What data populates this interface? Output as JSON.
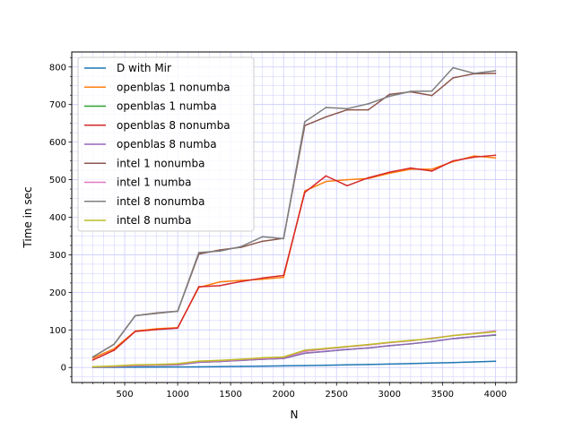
{
  "chart_data": {
    "type": "line",
    "title": "",
    "xlabel": "N",
    "ylabel": "Time in sec",
    "xlim": [
      0,
      4200
    ],
    "ylim": [
      -40,
      840
    ],
    "xticks": [
      500,
      1000,
      1500,
      2000,
      2500,
      3000,
      3500,
      4000
    ],
    "xtick_labels": [
      "500",
      "1000",
      "1500",
      "2000",
      "2500",
      "3000",
      "3500",
      "4000"
    ],
    "yticks": [
      0,
      100,
      200,
      300,
      400,
      500,
      600,
      700,
      800
    ],
    "ytick_labels": [
      "0",
      "100",
      "200",
      "300",
      "400",
      "500",
      "600",
      "700",
      "800"
    ],
    "x_minor_ticks": [
      100,
      200,
      300,
      400,
      600,
      700,
      800,
      900,
      1100,
      1200,
      1300,
      1400,
      1600,
      1700,
      1800,
      1900,
      2100,
      2200,
      2300,
      2400,
      2600,
      2700,
      2800,
      2900,
      3100,
      3200,
      3300,
      3400,
      3600,
      3700,
      3800,
      3900,
      4100
    ],
    "y_minor_ticks": [
      -25,
      25,
      50,
      75,
      125,
      150,
      175,
      225,
      250,
      275,
      325,
      350,
      375,
      425,
      450,
      475,
      525,
      550,
      575,
      625,
      650,
      675,
      725,
      750,
      775,
      825
    ],
    "grid": true,
    "grid_color": "#ccccff",
    "legend_position": "upper-left",
    "x": [
      200,
      400,
      600,
      800,
      1000,
      1200,
      1400,
      1600,
      1800,
      2000,
      2200,
      2400,
      2600,
      2800,
      3000,
      3200,
      3400,
      3600,
      3800,
      4000
    ],
    "series": [
      {
        "name": "D with Mir",
        "color": "#1f77b4",
        "values": [
          0.2,
          0.5,
          0.8,
          1.1,
          1.4,
          1.8,
          2.3,
          2.9,
          3.6,
          4.3,
          5.0,
          6.0,
          7.0,
          8.0,
          9.2,
          10.4,
          11.8,
          13.2,
          14.8,
          16.5
        ]
      },
      {
        "name": "openblas 1 nonumba",
        "color": "#ff7f0e",
        "values": [
          25,
          50,
          97,
          103,
          106,
          213,
          228,
          232,
          235,
          240,
          470,
          495,
          500,
          503,
          517,
          528,
          528,
          548,
          563,
          558
        ]
      },
      {
        "name": "openblas 1 numba",
        "color": "#2ca02c",
        "values": [
          1,
          2,
          5,
          6,
          7,
          14,
          16,
          19,
          22,
          24,
          38,
          43,
          48,
          52,
          58,
          63,
          69,
          77,
          82,
          86
        ]
      },
      {
        "name": "openblas 8 nonumba",
        "color": "#d62728",
        "values": [
          20,
          46,
          96,
          101,
          105,
          215,
          218,
          229,
          238,
          245,
          466,
          510,
          484,
          505,
          520,
          531,
          523,
          550,
          560,
          565
        ]
      },
      {
        "name": "openblas 8 numba",
        "color": "#9467bd",
        "values": [
          1,
          2,
          5,
          6,
          7,
          14,
          16,
          19,
          22,
          24,
          38,
          43,
          48,
          52,
          58,
          63,
          69,
          77,
          82,
          87
        ]
      },
      {
        "name": "intel 1 nonumba",
        "color": "#8c564b",
        "values": [
          28,
          62,
          138,
          145,
          150,
          302,
          313,
          320,
          336,
          344,
          644,
          667,
          686,
          686,
          727,
          734,
          724,
          771,
          782,
          783
        ]
      },
      {
        "name": "intel 1 numba",
        "color": "#e377c2",
        "values": [
          1,
          3,
          5,
          7,
          9,
          16,
          18,
          21,
          24,
          27,
          43,
          49,
          55,
          60,
          66,
          71,
          78,
          85,
          91,
          97
        ]
      },
      {
        "name": "intel 8 nonumba",
        "color": "#7f7f7f",
        "values": [
          28,
          62,
          138,
          144,
          150,
          306,
          310,
          322,
          348,
          343,
          654,
          692,
          689,
          702,
          722,
          735,
          736,
          798,
          783,
          790
        ]
      },
      {
        "name": "intel 8 numba",
        "color": "#bcbd22",
        "values": [
          2,
          4,
          7,
          8,
          10,
          17,
          19,
          22,
          26,
          28,
          46,
          51,
          56,
          61,
          67,
          72,
          77,
          85,
          90,
          95
        ]
      }
    ]
  }
}
